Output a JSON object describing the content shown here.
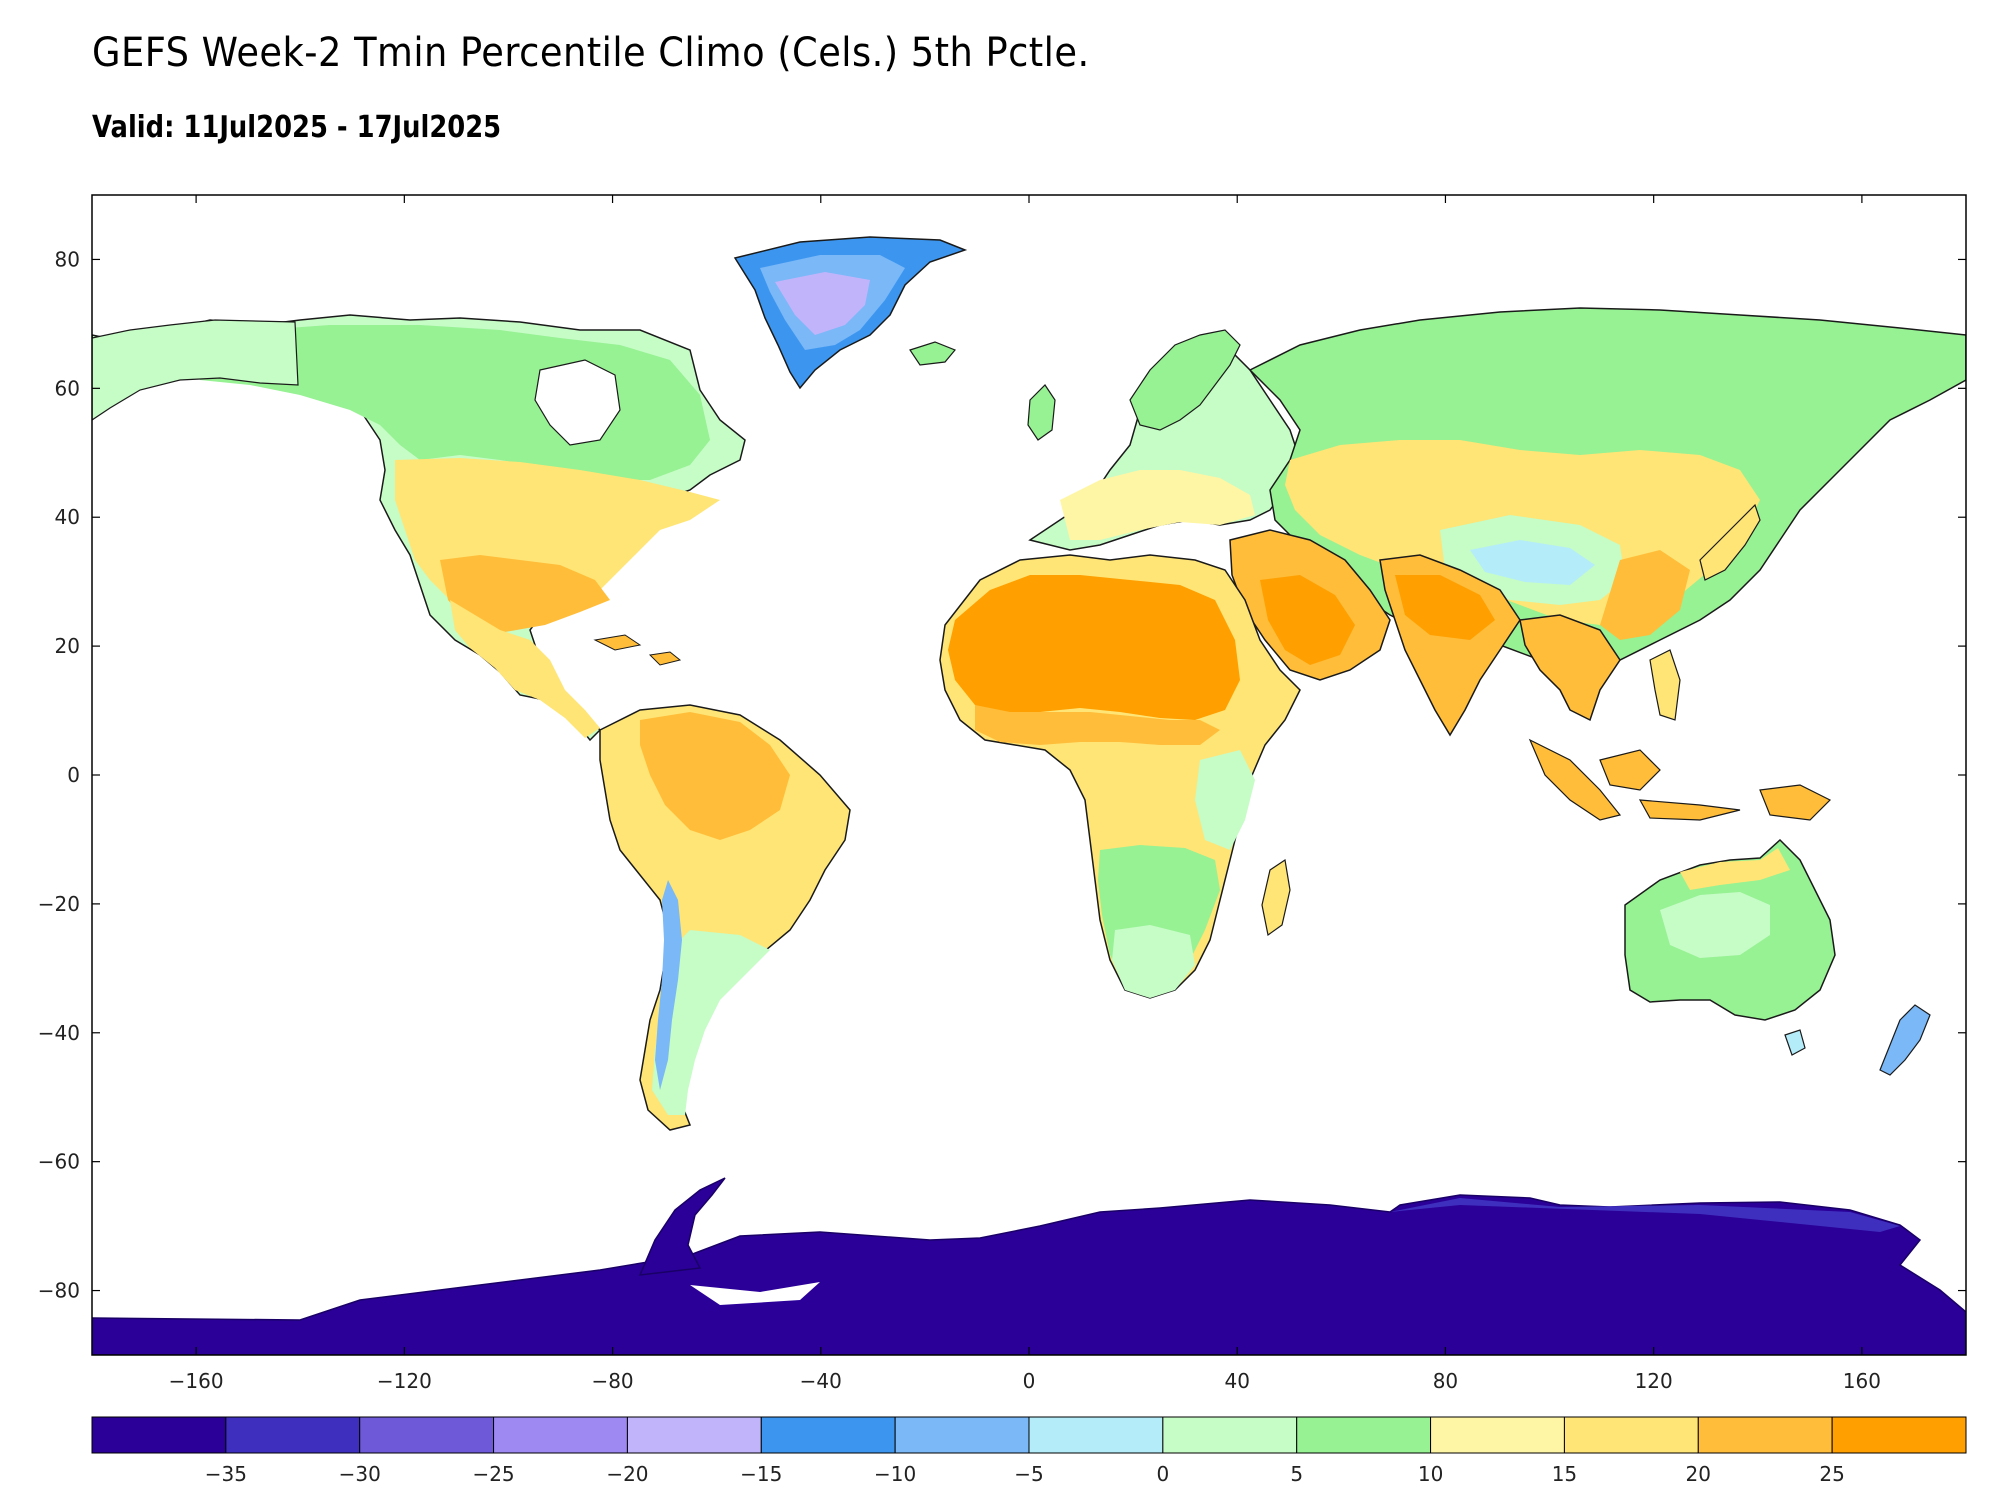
{
  "title": "GEFS Week-2 Tmin Percentile Climo (Cels.) 5th Pctle.",
  "subtitle": "Valid: 11Jul2025 - 17Jul2025",
  "axes": {
    "lat_ticks": [
      "80",
      "60",
      "40",
      "20",
      "0",
      "−20",
      "−40",
      "−60",
      "−80"
    ],
    "lon_ticks": [
      "−160",
      "−120",
      "−80",
      "−40",
      "0",
      "40",
      "80",
      "120",
      "160"
    ]
  },
  "colorbar": {
    "colors": [
      "#2a0099",
      "#3f2fbf",
      "#6e5ad9",
      "#9e89f2",
      "#c2b4fb",
      "#3c96f0",
      "#7ab8f7",
      "#b4ecfa",
      "#c6fcc6",
      "#96f293",
      "#fff6a5",
      "#ffe575",
      "#ffbd3a",
      "#ff9f00"
    ],
    "labels": [
      "−35",
      "−30",
      "−25",
      "−20",
      "−15",
      "−10",
      "−5",
      "0",
      "5",
      "10",
      "15",
      "20",
      "25"
    ]
  },
  "legend_colors": {
    "ice": "#2a0099",
    "greenland_core": "#c2b4fb",
    "greenland_mid": "#7ab8f7",
    "boreal": "#96f293",
    "temperate": "#c6fcc6",
    "warm": "#ffe575",
    "hot": "#ffbd3a",
    "hottest": "#ff9f00",
    "mountain": "#b4ecfa"
  }
}
